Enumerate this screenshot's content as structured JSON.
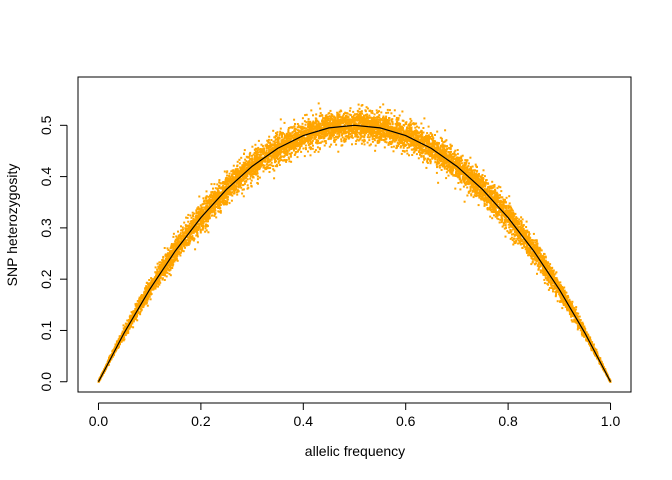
{
  "chart_data": {
    "type": "scatter",
    "title": "",
    "xlabel": "allelic frequency",
    "ylabel": "SNP heterozygosity",
    "xlim": [
      -0.04,
      1.04
    ],
    "ylim": [
      -0.02,
      0.5942
    ],
    "x_ticks": [
      0.0,
      0.2,
      0.4,
      0.6,
      0.8,
      1.0
    ],
    "x_tick_labels": [
      "0.0",
      "0.2",
      "0.4",
      "0.6",
      "0.8",
      "1.0"
    ],
    "y_ticks": [
      0.0,
      0.1,
      0.2,
      0.3,
      0.4,
      0.5
    ],
    "y_tick_labels": [
      "0.0",
      "0.1",
      "0.2",
      "0.3",
      "0.4",
      "0.5"
    ],
    "grid": false,
    "legend": "none",
    "point_color": "#FFA500",
    "line_color": "#000000",
    "series": [
      {
        "kind": "points",
        "point_count": 9000,
        "relation": "y ≈ 2·x·(1−x) with noise",
        "x_range": [
          0,
          1
        ],
        "noise_sd": 0.014,
        "description_points": [
          {
            "x": 0.0,
            "y": 0.0
          },
          {
            "x": 0.1,
            "y": 0.18
          },
          {
            "x": 0.2,
            "y": 0.32
          },
          {
            "x": 0.3,
            "y": 0.42
          },
          {
            "x": 0.4,
            "y": 0.48
          },
          {
            "x": 0.5,
            "y": 0.5
          },
          {
            "x": 0.6,
            "y": 0.48
          },
          {
            "x": 0.7,
            "y": 0.42
          },
          {
            "x": 0.8,
            "y": 0.32
          },
          {
            "x": 0.9,
            "y": 0.18
          },
          {
            "x": 1.0,
            "y": 0.0
          }
        ]
      },
      {
        "kind": "line",
        "relation": "y = 2·x·(1−x)",
        "x": [
          0.0,
          0.05,
          0.1,
          0.15,
          0.2,
          0.25,
          0.3,
          0.35,
          0.4,
          0.45,
          0.5,
          0.55,
          0.6,
          0.65,
          0.7,
          0.75,
          0.8,
          0.85,
          0.9,
          0.95,
          1.0
        ],
        "y": [
          0.0,
          0.095,
          0.18,
          0.255,
          0.32,
          0.375,
          0.42,
          0.455,
          0.48,
          0.495,
          0.5,
          0.495,
          0.48,
          0.455,
          0.42,
          0.375,
          0.32,
          0.255,
          0.18,
          0.095,
          0.0
        ]
      }
    ]
  }
}
